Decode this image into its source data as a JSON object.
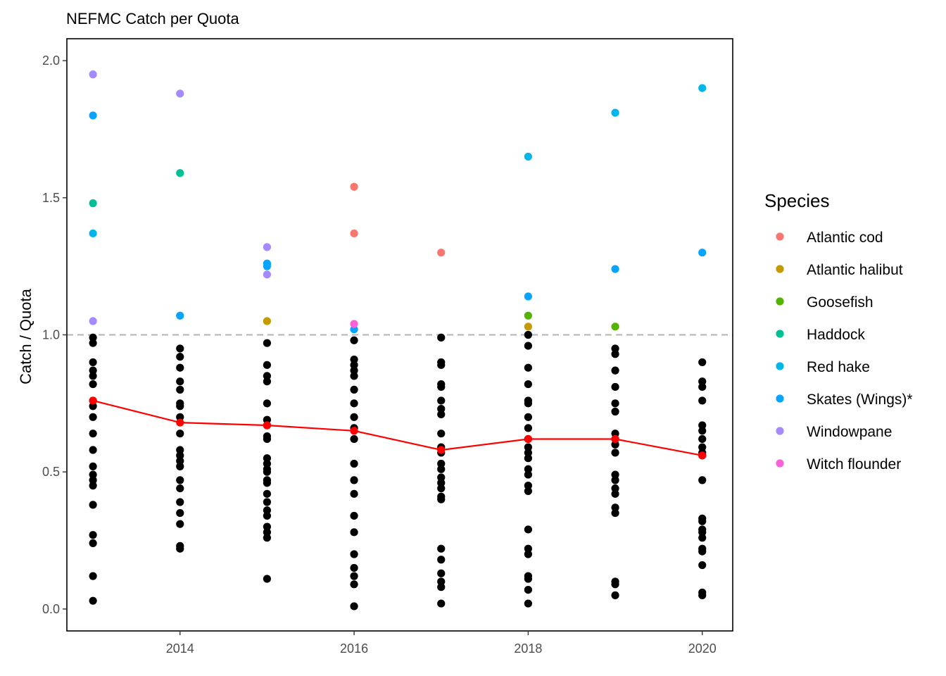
{
  "chart_data": {
    "type": "scatter",
    "title": "NEFMC Catch per Quota",
    "xlabel": "",
    "ylabel": "Catch / Quota",
    "xlim": [
      2012.7,
      2020.35
    ],
    "ylim": [
      -0.08,
      2.08
    ],
    "x_ticks": [
      2014,
      2016,
      2018,
      2020
    ],
    "y_ticks": [
      0.0,
      0.5,
      1.0,
      1.5,
      2.0
    ],
    "x_tick_labels": [
      "2014",
      "2016",
      "2018",
      "2020"
    ],
    "y_tick_labels": [
      "0.0",
      "0.5",
      "1.0",
      "1.5",
      "2.0"
    ],
    "reference_line": {
      "y": 1.0,
      "style": "dashed",
      "color": "#b3b3b3"
    },
    "grid": false,
    "legend": {
      "title": "Species",
      "position": "right"
    },
    "colored_series": [
      {
        "name": "Atlantic cod",
        "color": "#F8766D",
        "points": [
          [
            2016,
            1.54
          ],
          [
            2016,
            1.37
          ],
          [
            2017,
            1.3
          ]
        ]
      },
      {
        "name": "Atlantic halibut",
        "color": "#C49A00",
        "points": [
          [
            2015,
            1.05
          ],
          [
            2018,
            1.03
          ]
        ]
      },
      {
        "name": "Goosefish",
        "color": "#53B400",
        "points": [
          [
            2018,
            1.07
          ],
          [
            2019,
            1.03
          ]
        ]
      },
      {
        "name": "Haddock",
        "color": "#00C094",
        "points": [
          [
            2013,
            1.48
          ],
          [
            2014,
            1.59
          ]
        ]
      },
      {
        "name": "Red hake",
        "color": "#00B6EB",
        "points": [
          [
            2013,
            1.37
          ],
          [
            2018,
            1.65
          ],
          [
            2019,
            1.81
          ],
          [
            2020,
            1.9
          ]
        ]
      },
      {
        "name": "Skates (Wings)*",
        "color": "#06A4FF",
        "points": [
          [
            2013,
            1.8
          ],
          [
            2014,
            1.07
          ],
          [
            2015,
            1.26
          ],
          [
            2015,
            1.25
          ],
          [
            2016,
            1.02
          ],
          [
            2018,
            1.14
          ],
          [
            2019,
            1.24
          ],
          [
            2020,
            1.3
          ]
        ]
      },
      {
        "name": "Windowpane",
        "color": "#A58AFF",
        "points": [
          [
            2013,
            1.95
          ],
          [
            2013,
            1.05
          ],
          [
            2014,
            1.88
          ],
          [
            2015,
            1.32
          ],
          [
            2015,
            1.22
          ]
        ]
      },
      {
        "name": "Witch flounder",
        "color": "#FB61D7",
        "points": [
          [
            2016,
            1.04
          ]
        ]
      }
    ],
    "below_quota_points": {
      "color": "#000000",
      "points": [
        [
          2013,
          0.99
        ],
        [
          2013,
          0.97
        ],
        [
          2013,
          0.9
        ],
        [
          2013,
          0.87
        ],
        [
          2013,
          0.85
        ],
        [
          2013,
          0.82
        ],
        [
          2013,
          0.76
        ],
        [
          2013,
          0.74
        ],
        [
          2013,
          0.7
        ],
        [
          2013,
          0.64
        ],
        [
          2013,
          0.58
        ],
        [
          2013,
          0.52
        ],
        [
          2013,
          0.49
        ],
        [
          2013,
          0.47
        ],
        [
          2013,
          0.45
        ],
        [
          2013,
          0.38
        ],
        [
          2013,
          0.27
        ],
        [
          2013,
          0.24
        ],
        [
          2013,
          0.12
        ],
        [
          2013,
          0.03
        ],
        [
          2014,
          0.95
        ],
        [
          2014,
          0.92
        ],
        [
          2014,
          0.88
        ],
        [
          2014,
          0.83
        ],
        [
          2014,
          0.8
        ],
        [
          2014,
          0.75
        ],
        [
          2014,
          0.74
        ],
        [
          2014,
          0.7
        ],
        [
          2014,
          0.64
        ],
        [
          2014,
          0.58
        ],
        [
          2014,
          0.56
        ],
        [
          2014,
          0.54
        ],
        [
          2014,
          0.52
        ],
        [
          2014,
          0.47
        ],
        [
          2014,
          0.44
        ],
        [
          2014,
          0.39
        ],
        [
          2014,
          0.35
        ],
        [
          2014,
          0.31
        ],
        [
          2014,
          0.23
        ],
        [
          2014,
          0.22
        ],
        [
          2015,
          0.97
        ],
        [
          2015,
          0.89
        ],
        [
          2015,
          0.85
        ],
        [
          2015,
          0.83
        ],
        [
          2015,
          0.75
        ],
        [
          2015,
          0.69
        ],
        [
          2015,
          0.67
        ],
        [
          2015,
          0.63
        ],
        [
          2015,
          0.62
        ],
        [
          2015,
          0.55
        ],
        [
          2015,
          0.53
        ],
        [
          2015,
          0.51
        ],
        [
          2015,
          0.5
        ],
        [
          2015,
          0.47
        ],
        [
          2015,
          0.46
        ],
        [
          2015,
          0.42
        ],
        [
          2015,
          0.39
        ],
        [
          2015,
          0.36
        ],
        [
          2015,
          0.34
        ],
        [
          2015,
          0.3
        ],
        [
          2015,
          0.28
        ],
        [
          2015,
          0.26
        ],
        [
          2015,
          0.11
        ],
        [
          2016,
          0.98
        ],
        [
          2016,
          0.91
        ],
        [
          2016,
          0.89
        ],
        [
          2016,
          0.87
        ],
        [
          2016,
          0.85
        ],
        [
          2016,
          0.8
        ],
        [
          2016,
          0.75
        ],
        [
          2016,
          0.7
        ],
        [
          2016,
          0.66
        ],
        [
          2016,
          0.62
        ],
        [
          2016,
          0.53
        ],
        [
          2016,
          0.47
        ],
        [
          2016,
          0.42
        ],
        [
          2016,
          0.34
        ],
        [
          2016,
          0.28
        ],
        [
          2016,
          0.2
        ],
        [
          2016,
          0.15
        ],
        [
          2016,
          0.12
        ],
        [
          2016,
          0.09
        ],
        [
          2016,
          0.01
        ],
        [
          2017,
          0.99
        ],
        [
          2017,
          0.9
        ],
        [
          2017,
          0.89
        ],
        [
          2017,
          0.82
        ],
        [
          2017,
          0.81
        ],
        [
          2017,
          0.76
        ],
        [
          2017,
          0.73
        ],
        [
          2017,
          0.71
        ],
        [
          2017,
          0.64
        ],
        [
          2017,
          0.59
        ],
        [
          2017,
          0.57
        ],
        [
          2017,
          0.53
        ],
        [
          2017,
          0.51
        ],
        [
          2017,
          0.48
        ],
        [
          2017,
          0.46
        ],
        [
          2017,
          0.44
        ],
        [
          2017,
          0.41
        ],
        [
          2017,
          0.4
        ],
        [
          2017,
          0.22
        ],
        [
          2017,
          0.18
        ],
        [
          2017,
          0.13
        ],
        [
          2017,
          0.1
        ],
        [
          2017,
          0.08
        ],
        [
          2017,
          0.02
        ],
        [
          2018,
          1.0
        ],
        [
          2018,
          0.96
        ],
        [
          2018,
          0.88
        ],
        [
          2018,
          0.82
        ],
        [
          2018,
          0.76
        ],
        [
          2018,
          0.75
        ],
        [
          2018,
          0.7
        ],
        [
          2018,
          0.66
        ],
        [
          2018,
          0.62
        ],
        [
          2018,
          0.59
        ],
        [
          2018,
          0.57
        ],
        [
          2018,
          0.55
        ],
        [
          2018,
          0.51
        ],
        [
          2018,
          0.49
        ],
        [
          2018,
          0.45
        ],
        [
          2018,
          0.43
        ],
        [
          2018,
          0.29
        ],
        [
          2018,
          0.22
        ],
        [
          2018,
          0.2
        ],
        [
          2018,
          0.12
        ],
        [
          2018,
          0.11
        ],
        [
          2018,
          0.07
        ],
        [
          2018,
          0.02
        ],
        [
          2019,
          0.95
        ],
        [
          2019,
          0.93
        ],
        [
          2019,
          0.87
        ],
        [
          2019,
          0.81
        ],
        [
          2019,
          0.75
        ],
        [
          2019,
          0.72
        ],
        [
          2019,
          0.64
        ],
        [
          2019,
          0.62
        ],
        [
          2019,
          0.6
        ],
        [
          2019,
          0.57
        ],
        [
          2019,
          0.49
        ],
        [
          2019,
          0.47
        ],
        [
          2019,
          0.44
        ],
        [
          2019,
          0.42
        ],
        [
          2019,
          0.37
        ],
        [
          2019,
          0.35
        ],
        [
          2019,
          0.1
        ],
        [
          2019,
          0.09
        ],
        [
          2019,
          0.05
        ],
        [
          2020,
          0.9
        ],
        [
          2020,
          0.83
        ],
        [
          2020,
          0.81
        ],
        [
          2020,
          0.76
        ],
        [
          2020,
          0.67
        ],
        [
          2020,
          0.65
        ],
        [
          2020,
          0.62
        ],
        [
          2020,
          0.59
        ],
        [
          2020,
          0.57
        ],
        [
          2020,
          0.56
        ],
        [
          2020,
          0.47
        ],
        [
          2020,
          0.33
        ],
        [
          2020,
          0.32
        ],
        [
          2020,
          0.29
        ],
        [
          2020,
          0.28
        ],
        [
          2020,
          0.26
        ],
        [
          2020,
          0.22
        ],
        [
          2020,
          0.21
        ],
        [
          2020,
          0.16
        ],
        [
          2020,
          0.06
        ],
        [
          2020,
          0.05
        ]
      ]
    },
    "mean_line": {
      "color": "#FF0000",
      "x": [
        2013,
        2014,
        2015,
        2016,
        2017,
        2018,
        2019,
        2020
      ],
      "y": [
        0.76,
        0.68,
        0.67,
        0.65,
        0.58,
        0.62,
        0.62,
        0.56
      ]
    }
  }
}
